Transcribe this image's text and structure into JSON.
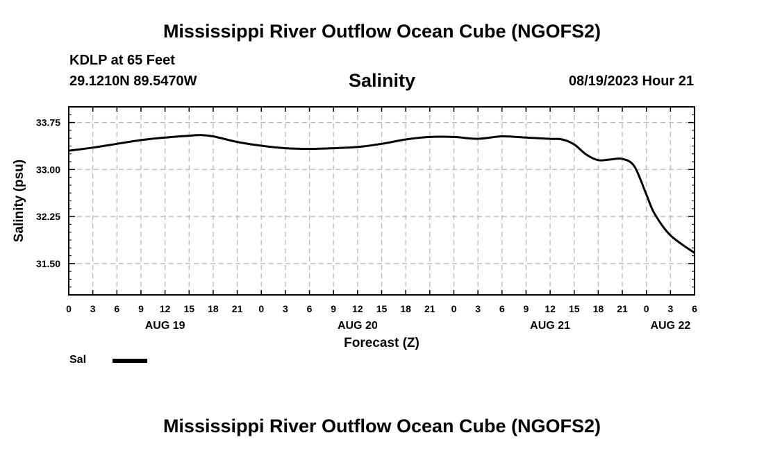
{
  "header": {
    "title": "Mississippi River Outflow Ocean Cube (NGOFS2)",
    "station": "KDLP at 65 Feet",
    "coords": "29.1210N  89.5470W",
    "variable": "Salinity",
    "datetime": "08/19/2023 Hour 21"
  },
  "footer": {
    "title": "Mississippi River Outflow Ocean Cube (NGOFS2)"
  },
  "legend": {
    "label": "Sal"
  },
  "chart_data": {
    "type": "line",
    "xlabel": "Forecast (Z)",
    "ylabel": "Salinity (psu)",
    "ylim": [
      31.0,
      34.0
    ],
    "xlim": [
      0,
      78
    ],
    "grid": true,
    "legend": "bottom-left",
    "x_unit": "forecast hour",
    "x_tick_values": [
      0,
      3,
      6,
      9,
      12,
      15,
      18,
      21,
      24,
      27,
      30,
      33,
      36,
      39,
      42,
      45,
      48,
      51,
      54,
      57,
      60,
      63,
      66,
      69,
      72,
      75,
      78
    ],
    "x_tick_labels": [
      "0",
      "3",
      "6",
      "9",
      "12",
      "15",
      "18",
      "21",
      "0",
      "3",
      "6",
      "9",
      "12",
      "15",
      "18",
      "21",
      "0",
      "3",
      "6",
      "9",
      "12",
      "15",
      "18",
      "21",
      "0",
      "3",
      "6"
    ],
    "day_labels": [
      {
        "label": "AUG 19",
        "x": 12
      },
      {
        "label": "AUG 20",
        "x": 36
      },
      {
        "label": "AUG 21",
        "x": 60
      },
      {
        "label": "AUG 22",
        "x": 75
      }
    ],
    "y_tick_values": [
      31.5,
      32.25,
      33.0,
      33.75
    ],
    "y_tick_labels": [
      "31.50",
      "32.25",
      "33.00",
      "33.75"
    ],
    "series": [
      {
        "name": "Sal",
        "color": "#000000",
        "x": [
          0,
          3,
          6,
          9,
          12,
          15,
          16.5,
          18,
          21,
          24,
          27,
          30,
          33,
          36,
          39,
          42,
          45,
          48,
          51,
          54,
          57,
          60,
          61.5,
          63,
          64.5,
          66,
          67.5,
          69,
          70.5,
          72,
          73,
          75,
          78
        ],
        "y": [
          33.3,
          33.35,
          33.41,
          33.47,
          33.51,
          33.54,
          33.55,
          33.53,
          33.44,
          33.38,
          33.34,
          33.33,
          33.34,
          33.36,
          33.41,
          33.48,
          33.52,
          33.52,
          33.49,
          33.53,
          33.51,
          33.49,
          33.48,
          33.4,
          33.24,
          33.15,
          33.16,
          33.17,
          33.05,
          32.6,
          32.3,
          31.95,
          31.67
        ]
      }
    ]
  }
}
